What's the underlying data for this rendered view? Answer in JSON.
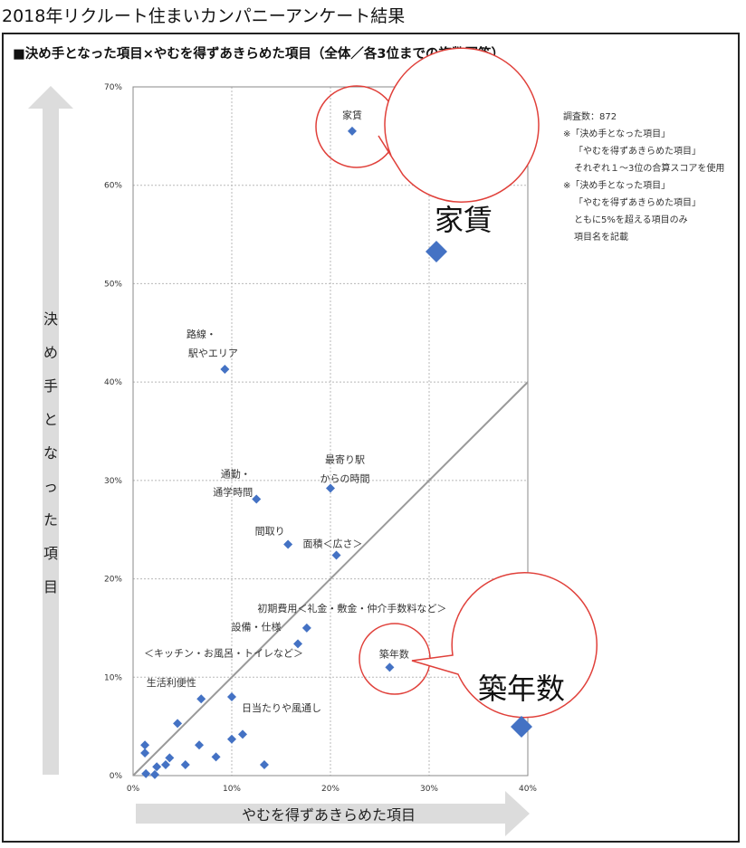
{
  "page_title": "2018年リクルート住まいカンパニーアンケート結果",
  "chart_data": {
    "type": "scatter",
    "title": "■決め手となった項目×やむを得ずあきらめた項目（全体／各3位までの複数回答）",
    "xlabel": "やむを得ずあきらめた項目",
    "ylabel": "決め手となった項目",
    "xlim": [
      0,
      40
    ],
    "ylim": [
      0,
      70
    ],
    "x_ticks": [
      "0%",
      "10%",
      "20%",
      "30%",
      "40%"
    ],
    "y_ticks": [
      "0%",
      "10%",
      "20%",
      "30%",
      "40%",
      "50%",
      "60%",
      "70%"
    ],
    "grid": true,
    "diagonal_line": {
      "from": [
        0,
        0
      ],
      "to": [
        40,
        40
      ]
    },
    "marker_color": "#4472c4",
    "notes": [
      "調査数：872",
      "※「決め手となった項目」",
      "「やむを得ずあきらめた項目」",
      "それぞれ１～3位の合算スコアを使用",
      "※「決め手となった項目」",
      "「やむを得ずあきらめた項目」",
      "ともに5%を超える項目のみ",
      "項目名を記載"
    ],
    "points": [
      {
        "x": 22.2,
        "y": 65.5,
        "label": "家賃"
      },
      {
        "x": 9.3,
        "y": 41.3,
        "label": "路線・駅やエリア"
      },
      {
        "x": 20.0,
        "y": 29.2,
        "label": "最寄り駅からの時間"
      },
      {
        "x": 12.5,
        "y": 28.1,
        "label": "通勤・通学時間"
      },
      {
        "x": 15.7,
        "y": 23.5,
        "label": "間取り"
      },
      {
        "x": 20.6,
        "y": 22.4,
        "label": "面積＜広さ＞"
      },
      {
        "x": 17.6,
        "y": 15.0,
        "label": "初期費用＜礼金・敷金・仲介手数料など＞"
      },
      {
        "x": 16.7,
        "y": 13.4,
        "label": "設備・仕様＜キッチン・お風呂・トイレなど＞"
      },
      {
        "x": 26.0,
        "y": 11.0,
        "label": "築年数"
      },
      {
        "x": 6.9,
        "y": 7.8,
        "label": "生活利便性"
      },
      {
        "x": 10.0,
        "y": 8.0,
        "label": "日当たりや風通し"
      },
      {
        "x": 1.2,
        "y": 3.1,
        "label": ""
      },
      {
        "x": 1.2,
        "y": 2.3,
        "label": ""
      },
      {
        "x": 1.3,
        "y": 0.2,
        "label": ""
      },
      {
        "x": 2.2,
        "y": 0.1,
        "label": ""
      },
      {
        "x": 2.4,
        "y": 0.9,
        "label": ""
      },
      {
        "x": 3.3,
        "y": 1.1,
        "label": ""
      },
      {
        "x": 3.7,
        "y": 1.8,
        "label": ""
      },
      {
        "x": 4.5,
        "y": 5.3,
        "label": ""
      },
      {
        "x": 5.3,
        "y": 1.1,
        "label": ""
      },
      {
        "x": 6.7,
        "y": 3.1,
        "label": ""
      },
      {
        "x": 8.4,
        "y": 1.9,
        "label": ""
      },
      {
        "x": 10.0,
        "y": 3.7,
        "label": ""
      },
      {
        "x": 11.1,
        "y": 4.2,
        "label": ""
      },
      {
        "x": 13.3,
        "y": 1.1,
        "label": ""
      }
    ],
    "callouts": [
      {
        "label": "家賃"
      },
      {
        "label": "築年数"
      }
    ]
  }
}
